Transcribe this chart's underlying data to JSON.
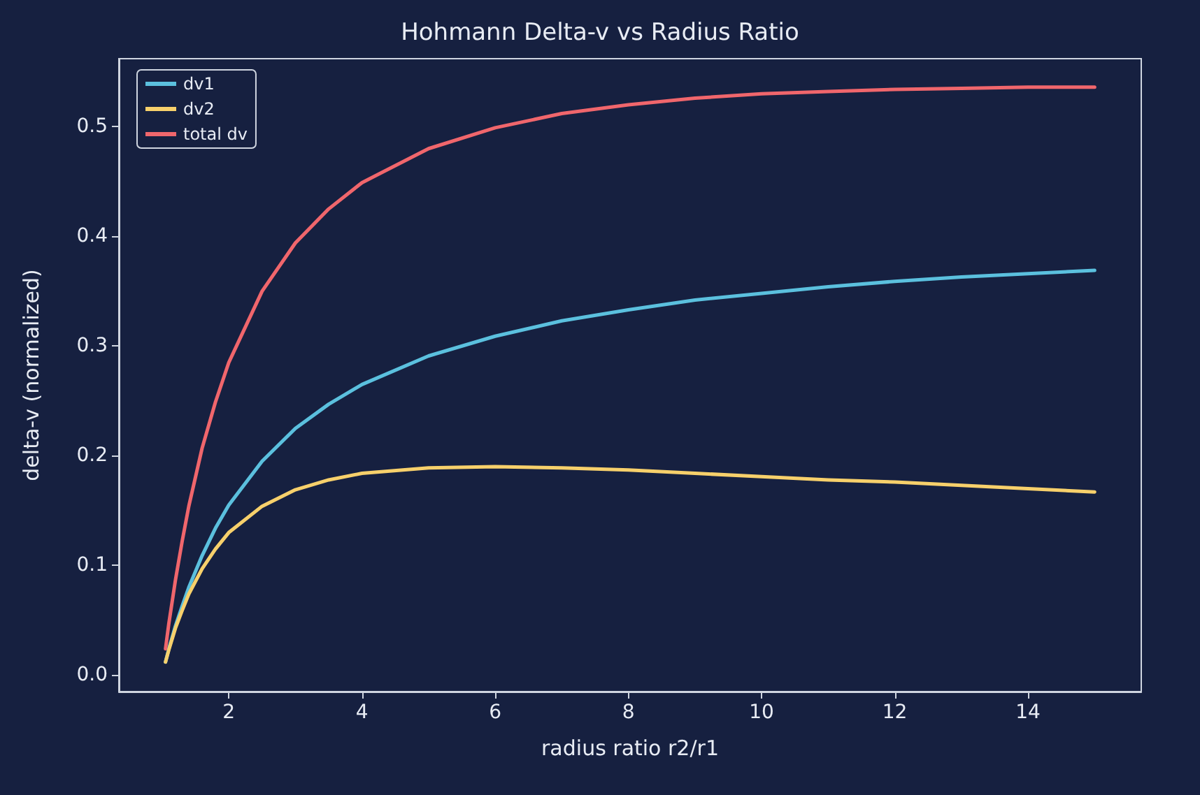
{
  "chart_data": {
    "type": "line",
    "title": "Hohmann Delta-v vs Radius Ratio",
    "xlabel": "radius ratio r2/r1",
    "ylabel": "delta-v (normalized)",
    "x": [
      1.05,
      1.1,
      1.2,
      1.3,
      1.4,
      1.6,
      1.8,
      2,
      2.5,
      3,
      3.5,
      4,
      5,
      6,
      7,
      8,
      9,
      10,
      11,
      12,
      13,
      14,
      15
    ],
    "series": [
      {
        "name": "dv1",
        "color": "#5bc0de",
        "values": [
          0.012,
          0.024,
          0.045,
          0.063,
          0.08,
          0.109,
          0.134,
          0.155,
          0.195,
          0.225,
          0.247,
          0.265,
          0.291,
          0.309,
          0.323,
          0.333,
          0.342,
          0.348,
          0.354,
          0.359,
          0.363,
          0.366,
          0.369
        ]
      },
      {
        "name": "dv2",
        "color": "#f7d06b",
        "values": [
          0.012,
          0.023,
          0.043,
          0.059,
          0.074,
          0.097,
          0.115,
          0.13,
          0.154,
          0.169,
          0.178,
          0.184,
          0.189,
          0.19,
          0.189,
          0.187,
          0.184,
          0.181,
          0.178,
          0.176,
          0.173,
          0.17,
          0.167
        ]
      },
      {
        "name": "total dv",
        "color": "#f0666c",
        "values": [
          0.024,
          0.047,
          0.087,
          0.122,
          0.154,
          0.207,
          0.249,
          0.285,
          0.35,
          0.394,
          0.425,
          0.449,
          0.48,
          0.499,
          0.512,
          0.52,
          0.526,
          0.53,
          0.532,
          0.534,
          0.535,
          0.536,
          0.536
        ]
      }
    ],
    "xlim": [
      0.35,
      15.7
    ],
    "xticks": [
      2,
      4,
      6,
      8,
      10,
      12,
      14
    ],
    "ylim": [
      -0.015,
      0.562
    ],
    "yticks": [
      {
        "value": 0,
        "label": "0.0"
      },
      0.1,
      0.2,
      0.3,
      0.4,
      0.5
    ],
    "grid": false,
    "legend": "top left",
    "line_style": "solid",
    "marker": "none"
  }
}
